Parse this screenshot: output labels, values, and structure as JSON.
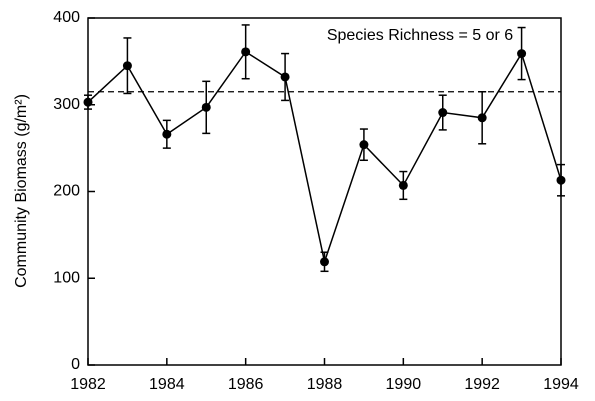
{
  "chart_data": {
    "type": "line",
    "ylabel": "Community Biomass (g/m²)",
    "annotation": "Species Richness = 5 or 6",
    "x": [
      1982,
      1983,
      1984,
      1985,
      1986,
      1987,
      1988,
      1989,
      1990,
      1991,
      1992,
      1993,
      1994
    ],
    "values": [
      303,
      345,
      266,
      297,
      361,
      332,
      119,
      254,
      207,
      291,
      285,
      359,
      213
    ],
    "errors": [
      8,
      32,
      16,
      30,
      31,
      27,
      11,
      18,
      16,
      20,
      30,
      30,
      18
    ],
    "color": "#000000",
    "reference_line": 315,
    "reference_style": "dashed",
    "xlim": [
      1982,
      1994
    ],
    "xticks": [
      1982,
      1984,
      1986,
      1988,
      1990,
      1992,
      1994
    ],
    "ylim": [
      0,
      400
    ],
    "yticks": [
      0,
      100,
      200,
      300,
      400
    ]
  }
}
